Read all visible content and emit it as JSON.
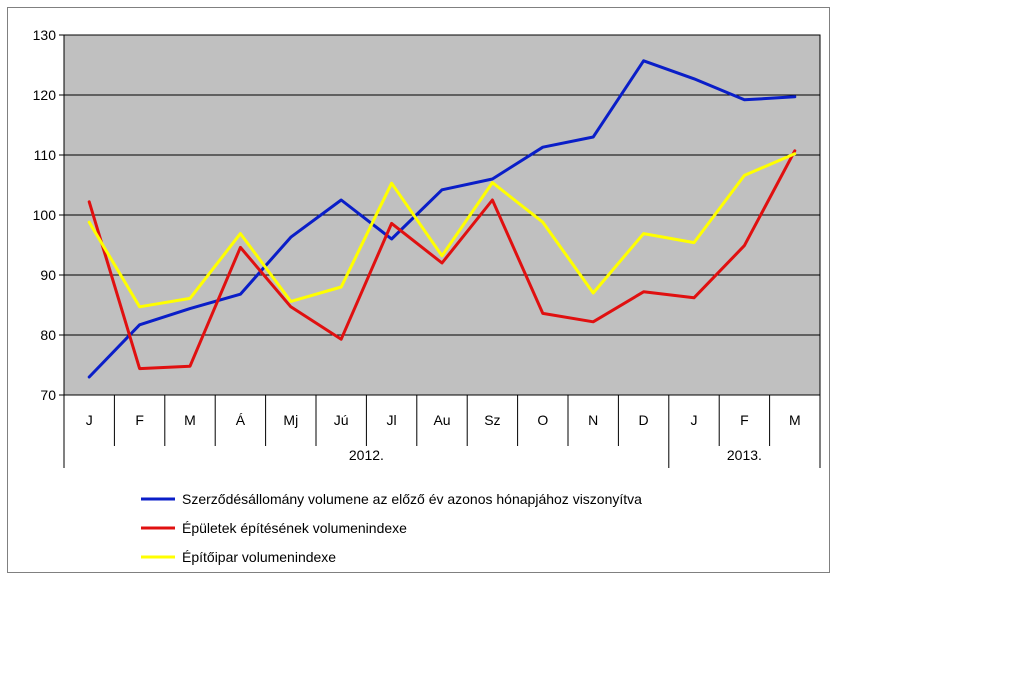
{
  "chart_data": {
    "type": "line",
    "categories": [
      "J",
      "F",
      "M",
      "Á",
      "Mj",
      "Jú",
      "Jl",
      "Au",
      "Sz",
      "O",
      "N",
      "D",
      "J",
      "F",
      "M"
    ],
    "groups": [
      {
        "label": "2012.",
        "start": 0,
        "end": 11
      },
      {
        "label": "2013.",
        "start": 12,
        "end": 14
      }
    ],
    "ylim": [
      70,
      130
    ],
    "yticks": [
      70,
      80,
      90,
      100,
      110,
      120,
      130
    ],
    "plot_background": "#c0c0c0",
    "grid": true,
    "legend_position": "bottom",
    "series": [
      {
        "name": "Szerződésállomány volumene az előző év azonos hónapjához viszonyítva",
        "color": "#0a1ec8",
        "values": [
          73.0,
          81.7,
          84.4,
          86.8,
          96.3,
          102.5,
          96.0,
          104.2,
          106.0,
          111.3,
          113.0,
          125.7,
          122.7,
          119.2,
          119.7
        ]
      },
      {
        "name": "Épületek építésének volumenindexe",
        "color": "#e01010",
        "values": [
          102.2,
          74.4,
          74.8,
          94.6,
          84.7,
          79.3,
          98.6,
          92.0,
          102.5,
          83.6,
          82.2,
          87.2,
          86.2,
          94.9,
          110.7
        ]
      },
      {
        "name": "Építőipar volumenindexe",
        "color": "#ffff00",
        "values": [
          98.8,
          84.7,
          86.1,
          96.9,
          85.6,
          88.0,
          105.3,
          93.2,
          105.4,
          98.8,
          87.0,
          96.9,
          95.4,
          106.6,
          110.2
        ]
      }
    ]
  }
}
